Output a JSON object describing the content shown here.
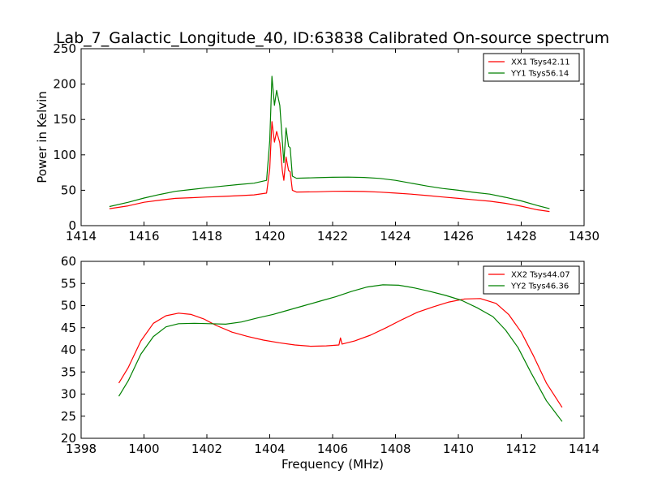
{
  "figure_title": "Lab_7_Galactic_Longitude_40, ID:63838 Calibrated On-source spectrum",
  "chart_data": [
    {
      "type": "line",
      "title": "",
      "xlabel": "",
      "ylabel": "Power in Kelvin",
      "xlim": [
        1414,
        1430
      ],
      "ylim": [
        0,
        250
      ],
      "xticks": [
        1414,
        1416,
        1418,
        1420,
        1422,
        1424,
        1426,
        1428,
        1430
      ],
      "yticks": [
        0,
        50,
        100,
        150,
        200,
        250
      ],
      "grid": false,
      "legend_position": "top-right",
      "series": [
        {
          "name": "XX1 Tsys42.11",
          "color": "#ff0000",
          "points": [
            [
              1414.9,
              24
            ],
            [
              1415.5,
              28
            ],
            [
              1416,
              33
            ],
            [
              1416.5,
              36
            ],
            [
              1417,
              38.5
            ],
            [
              1417.5,
              39.5
            ],
            [
              1418,
              40.5
            ],
            [
              1418.5,
              41.3
            ],
            [
              1419,
              42.3
            ],
            [
              1419.5,
              43.5
            ],
            [
              1419.9,
              46
            ],
            [
              1420.0,
              80
            ],
            [
              1420.07,
              147
            ],
            [
              1420.15,
              118
            ],
            [
              1420.22,
              133
            ],
            [
              1420.32,
              117
            ],
            [
              1420.4,
              78
            ],
            [
              1420.45,
              64
            ],
            [
              1420.52,
              97
            ],
            [
              1420.6,
              78
            ],
            [
              1420.65,
              76
            ],
            [
              1420.72,
              50
            ],
            [
              1420.85,
              47.5
            ],
            [
              1421.5,
              47.8
            ],
            [
              1422,
              48.5
            ],
            [
              1422.5,
              48.6
            ],
            [
              1423,
              48.3
            ],
            [
              1423.5,
              47.4
            ],
            [
              1424,
              46
            ],
            [
              1424.5,
              44.5
            ],
            [
              1425,
              42.5
            ],
            [
              1425.5,
              40.5
            ],
            [
              1426,
              38.5
            ],
            [
              1426.5,
              36.5
            ],
            [
              1427,
              34.5
            ],
            [
              1427.5,
              31.5
            ],
            [
              1428,
              27.5
            ],
            [
              1428.5,
              22.5
            ],
            [
              1428.9,
              20
            ]
          ]
        },
        {
          "name": "YY1 Tsys56.14",
          "color": "#008000",
          "points": [
            [
              1414.9,
              27
            ],
            [
              1415.5,
              33
            ],
            [
              1416,
              39
            ],
            [
              1416.5,
              44
            ],
            [
              1417,
              48.5
            ],
            [
              1417.5,
              51
            ],
            [
              1418,
              53.5
            ],
            [
              1418.5,
              55.8
            ],
            [
              1419,
              58
            ],
            [
              1419.5,
              60
            ],
            [
              1419.9,
              64
            ],
            [
              1420.0,
              120
            ],
            [
              1420.07,
              211
            ],
            [
              1420.15,
              170
            ],
            [
              1420.22,
              191
            ],
            [
              1420.32,
              170
            ],
            [
              1420.4,
              120
            ],
            [
              1420.45,
              89
            ],
            [
              1420.52,
              138
            ],
            [
              1420.6,
              112
            ],
            [
              1420.65,
              110
            ],
            [
              1420.72,
              70
            ],
            [
              1420.85,
              67
            ],
            [
              1421.5,
              67.8
            ],
            [
              1422,
              68.3
            ],
            [
              1422.5,
              68.6
            ],
            [
              1423,
              68.1
            ],
            [
              1423.5,
              66.8
            ],
            [
              1424,
              64
            ],
            [
              1424.5,
              60
            ],
            [
              1425,
              56
            ],
            [
              1425.5,
              52.5
            ],
            [
              1426,
              50
            ],
            [
              1426.5,
              47
            ],
            [
              1427,
              44.5
            ],
            [
              1427.5,
              40
            ],
            [
              1428,
              35
            ],
            [
              1428.5,
              28.5
            ],
            [
              1428.9,
              24
            ]
          ]
        }
      ]
    },
    {
      "type": "line",
      "title": "",
      "xlabel": "Frequency (MHz)",
      "ylabel": "",
      "xlim": [
        1398,
        1414
      ],
      "ylim": [
        20,
        60
      ],
      "xticks": [
        1398,
        1400,
        1402,
        1404,
        1406,
        1408,
        1410,
        1412,
        1414
      ],
      "yticks": [
        20,
        25,
        30,
        35,
        40,
        45,
        50,
        55,
        60
      ],
      "grid": false,
      "legend_position": "top-right",
      "series": [
        {
          "name": "XX2 Tsys44.07",
          "color": "#ff0000",
          "points": [
            [
              1399.2,
              32.5
            ],
            [
              1399.5,
              36
            ],
            [
              1399.9,
              42
            ],
            [
              1400.3,
              46
            ],
            [
              1400.7,
              47.7
            ],
            [
              1401.1,
              48.3
            ],
            [
              1401.5,
              48
            ],
            [
              1401.9,
              47
            ],
            [
              1402.3,
              45.5
            ],
            [
              1402.8,
              44
            ],
            [
              1403.3,
              43
            ],
            [
              1403.8,
              42.2
            ],
            [
              1404.3,
              41.6
            ],
            [
              1404.8,
              41.1
            ],
            [
              1405.3,
              40.8
            ],
            [
              1405.8,
              40.9
            ],
            [
              1406.2,
              41.1
            ],
            [
              1406.25,
              42.7
            ],
            [
              1406.3,
              41.3
            ],
            [
              1406.7,
              42
            ],
            [
              1407.2,
              43.3
            ],
            [
              1407.7,
              45
            ],
            [
              1408.2,
              46.8
            ],
            [
              1408.7,
              48.5
            ],
            [
              1409.2,
              49.7
            ],
            [
              1409.7,
              50.8
            ],
            [
              1410.2,
              51.5
            ],
            [
              1410.7,
              51.6
            ],
            [
              1411.2,
              50.5
            ],
            [
              1411.6,
              48
            ],
            [
              1412,
              44
            ],
            [
              1412.4,
              38.5
            ],
            [
              1412.8,
              32.5
            ],
            [
              1413.3,
              27
            ]
          ]
        },
        {
          "name": "YY2 Tsys46.36",
          "color": "#008000",
          "points": [
            [
              1399.2,
              29.5
            ],
            [
              1399.5,
              33
            ],
            [
              1399.9,
              39
            ],
            [
              1400.3,
              43
            ],
            [
              1400.7,
              45.2
            ],
            [
              1401.1,
              45.9
            ],
            [
              1401.6,
              46
            ],
            [
              1402.1,
              45.9
            ],
            [
              1402.6,
              45.8
            ],
            [
              1403.1,
              46.3
            ],
            [
              1403.6,
              47.2
            ],
            [
              1404.1,
              48
            ],
            [
              1404.6,
              49
            ],
            [
              1405.1,
              50
            ],
            [
              1405.6,
              51
            ],
            [
              1406.1,
              52
            ],
            [
              1406.6,
              53.2
            ],
            [
              1407.1,
              54.2
            ],
            [
              1407.6,
              54.7
            ],
            [
              1408.1,
              54.6
            ],
            [
              1408.6,
              54
            ],
            [
              1409.1,
              53.2
            ],
            [
              1409.6,
              52.3
            ],
            [
              1410.1,
              51.2
            ],
            [
              1410.6,
              49.5
            ],
            [
              1411.1,
              47.5
            ],
            [
              1411.5,
              44.5
            ],
            [
              1411.9,
              40.5
            ],
            [
              1412.3,
              35
            ],
            [
              1412.8,
              28.5
            ],
            [
              1413.3,
              23.8
            ]
          ]
        }
      ]
    }
  ]
}
